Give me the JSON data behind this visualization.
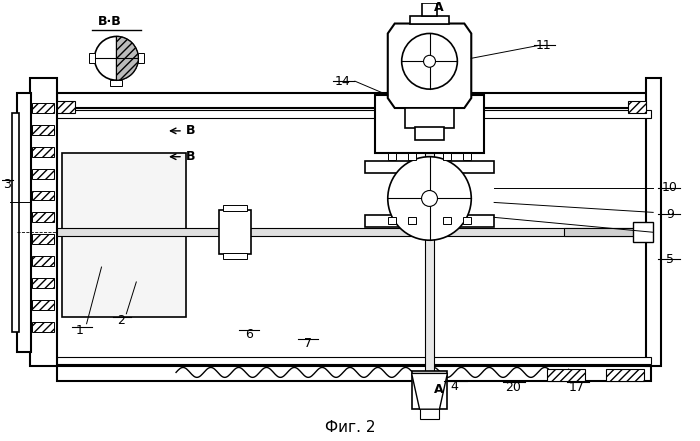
{
  "title": "Фиг. 2",
  "bg_color": "#ffffff",
  "line_color": "#000000",
  "labels": {
    "BB": "В·В",
    "B_upper": "B",
    "B_lower": "B",
    "A_upper": "A",
    "A_lower": "A",
    "num_1": "1",
    "num_2": "2",
    "num_3": "3",
    "num_4": "4",
    "num_5": "5",
    "num_6": "6",
    "num_7": "7",
    "num_9": "9",
    "num_10": "10",
    "num_11": "11",
    "num_14": "14",
    "num_17": "17",
    "num_20": "20"
  }
}
